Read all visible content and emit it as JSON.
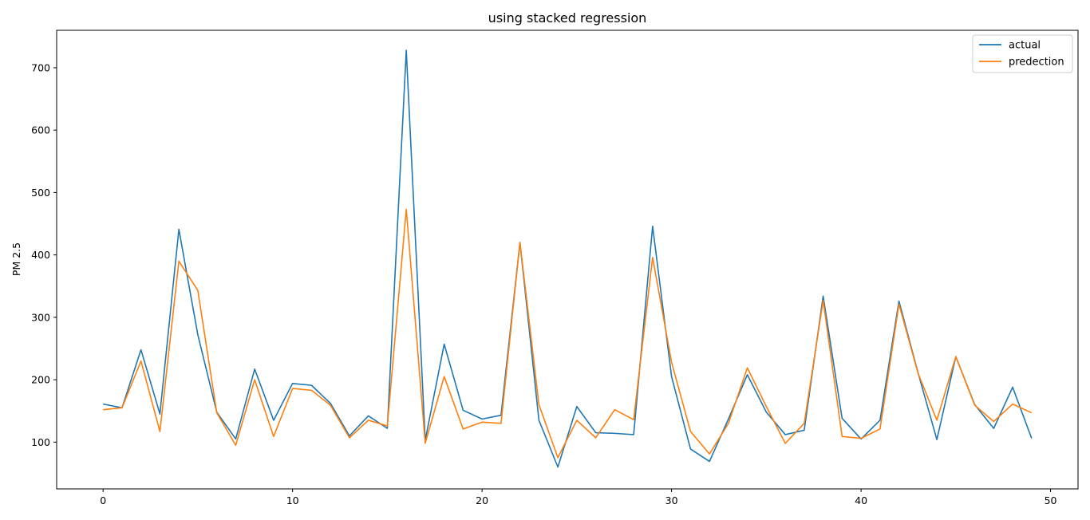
{
  "chart_data": {
    "type": "line",
    "title": "using stacked regression",
    "xlabel": "",
    "ylabel": "PM 2.5",
    "xlim": [
      -2.45,
      51.45
    ],
    "ylim": [
      25,
      760
    ],
    "xticks": [
      0,
      10,
      20,
      30,
      40,
      50
    ],
    "yticks": [
      100,
      200,
      300,
      400,
      500,
      600,
      700
    ],
    "grid": false,
    "legend_position": "top-right",
    "x": [
      0,
      1,
      2,
      3,
      4,
      5,
      6,
      7,
      8,
      9,
      10,
      11,
      12,
      13,
      14,
      15,
      16,
      17,
      18,
      19,
      20,
      21,
      22,
      23,
      24,
      25,
      26,
      27,
      28,
      29,
      30,
      31,
      32,
      33,
      34,
      35,
      36,
      37,
      38,
      39,
      40,
      41,
      42,
      43,
      44,
      45,
      46,
      47,
      48,
      49
    ],
    "series": [
      {
        "name": "actual",
        "color": "#1f77b4",
        "values": [
          161,
          155,
          248,
          145,
          441,
          272,
          148,
          105,
          217,
          135,
          194,
          191,
          162,
          110,
          142,
          122,
          728,
          103,
          257,
          151,
          137,
          143,
          420,
          135,
          60,
          157,
          115,
          114,
          112,
          446,
          205,
          89,
          69,
          137,
          208,
          148,
          112,
          119,
          334,
          138,
          105,
          135,
          326,
          212,
          104,
          237,
          160,
          122,
          188,
          106
        ]
      },
      {
        "name": "predection",
        "color": "#ff7f0e",
        "values": [
          152,
          155,
          230,
          117,
          390,
          343,
          147,
          95,
          200,
          109,
          186,
          183,
          159,
          107,
          135,
          126,
          473,
          98,
          205,
          121,
          132,
          130,
          420,
          160,
          75,
          135,
          107,
          152,
          136,
          396,
          228,
          117,
          81,
          130,
          219,
          157,
          98,
          130,
          327,
          109,
          106,
          121,
          321,
          211,
          135,
          237,
          159,
          133,
          161,
          147
        ]
      }
    ]
  }
}
